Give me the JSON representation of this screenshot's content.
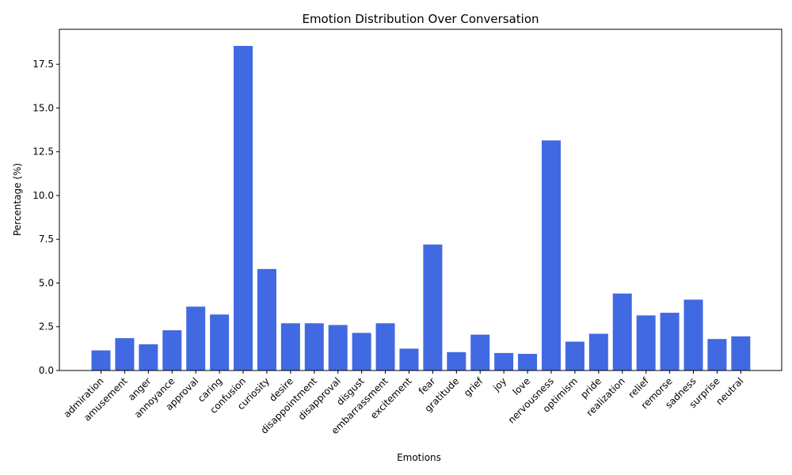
{
  "chart_data": {
    "type": "bar",
    "title": "Emotion Distribution Over Conversation",
    "xlabel": "Emotions",
    "ylabel": "Percentage (%)",
    "ylim": [
      0,
      19.5
    ],
    "yticks": [
      "0.0",
      "2.5",
      "5.0",
      "7.5",
      "10.0",
      "12.5",
      "15.0",
      "17.5"
    ],
    "grid": false,
    "color": "#4169e1",
    "categories": [
      "admiration",
      "amusement",
      "anger",
      "annoyance",
      "approval",
      "caring",
      "confusion",
      "curiosity",
      "desire",
      "disappointment",
      "disapproval",
      "disgust",
      "embarrassment",
      "excitement",
      "fear",
      "gratitude",
      "grief",
      "joy",
      "love",
      "nervousness",
      "optimism",
      "pride",
      "realization",
      "relief",
      "remorse",
      "sadness",
      "surprise",
      "neutral"
    ],
    "values": [
      1.15,
      1.85,
      1.5,
      2.3,
      3.65,
      3.2,
      18.55,
      5.8,
      2.7,
      2.7,
      2.6,
      2.15,
      2.7,
      1.25,
      7.2,
      1.05,
      2.05,
      1.0,
      0.95,
      13.15,
      1.65,
      2.1,
      4.4,
      3.15,
      3.3,
      4.05,
      1.8,
      1.95
    ]
  }
}
